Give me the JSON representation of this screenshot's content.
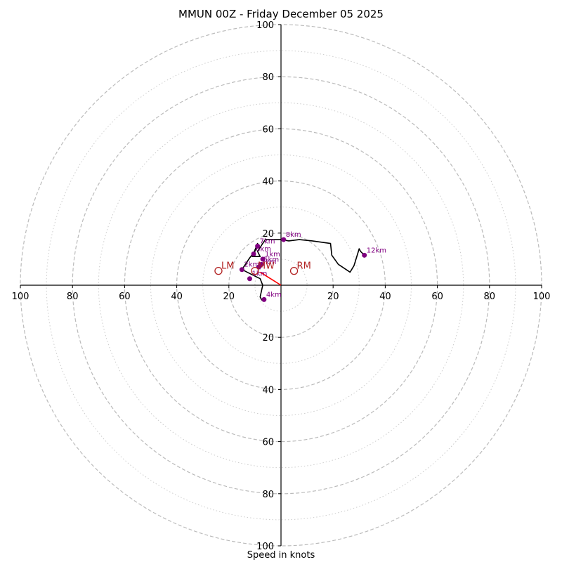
{
  "chart_data": {
    "type": "hodograph",
    "title": "MMUN 00Z - Friday December 05 2025",
    "xlabel": "Speed in knots",
    "ylabel": "",
    "rmax": 100,
    "ring_major": [
      20,
      40,
      60,
      80,
      100
    ],
    "ring_minor": [
      10,
      30,
      50,
      70,
      90
    ],
    "tick_labels_x_left": [
      "100",
      "80",
      "60",
      "40",
      "20"
    ],
    "tick_values_x_left": [
      -100,
      -80,
      -60,
      -40,
      -20
    ],
    "tick_labels_x_right": [
      "20",
      "40",
      "60",
      "80",
      "100"
    ],
    "tick_values_x_right": [
      20,
      40,
      60,
      80,
      100
    ],
    "tick_labels_y_up": [
      "20",
      "40",
      "60",
      "80",
      "100"
    ],
    "tick_values_y_up": [
      20,
      40,
      60,
      80,
      100
    ],
    "tick_labels_y_down": [
      "20",
      "40",
      "60",
      "80",
      "100"
    ],
    "tick_values_y_down": [
      -20,
      -40,
      -60,
      -80,
      -100
    ],
    "colors": {
      "trace": "#000000",
      "heights": "#800080",
      "motion": "#b22222",
      "shear": "#ff0000",
      "ring": "#bbbbbb"
    },
    "trace": {
      "u": [
        -7,
        -7.5,
        -8,
        -7,
        -8,
        -11,
        -15,
        -13,
        -12,
        -10,
        -9,
        -11,
        -10,
        -8,
        -9,
        -7,
        -6,
        -4,
        0,
        3,
        7,
        12,
        19,
        19.5,
        22,
        26.5,
        28,
        30,
        30.5,
        32
      ],
      "v": [
        -6,
        -5.5,
        -4.5,
        0,
        2.5,
        4,
        6,
        9,
        10.5,
        13,
        16,
        11,
        11,
        11,
        13,
        16,
        17.5,
        17.5,
        17.5,
        17,
        17.5,
        17,
        16,
        11.5,
        8,
        5,
        7.5,
        14,
        13,
        11.5
      ]
    },
    "heights": [
      {
        "label": "4km",
        "u": -6.5,
        "v": -5.5
      },
      {
        "label": "2km",
        "u": -15,
        "v": 6
      },
      {
        "label": "1km",
        "u": -12,
        "v": 2.5
      },
      {
        "label": "5km",
        "u": -7.5,
        "v": 8
      },
      {
        "label": "1km",
        "u": -7,
        "v": 10
      },
      {
        "label": "3km",
        "u": -8.5,
        "v": 7
      },
      {
        "label": "6km",
        "u": -10.5,
        "v": 12
      },
      {
        "label": "7km",
        "u": -9,
        "v": 15
      },
      {
        "label": "8km",
        "u": 1,
        "v": 17.5
      },
      {
        "label": "12km",
        "u": 32,
        "v": 11.5
      }
    ],
    "storm_motion": [
      {
        "label": "LM",
        "u": -24,
        "v": 5.5
      },
      {
        "label": "RM",
        "u": 5,
        "v": 5.5
      },
      {
        "label": "MW",
        "u": -10,
        "v": 5.5
      }
    ],
    "shear_vector": {
      "from": [
        0,
        0
      ],
      "to": [
        -8,
        5
      ]
    }
  }
}
